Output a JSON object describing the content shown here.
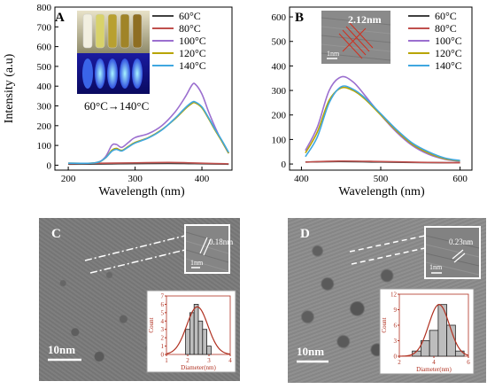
{
  "panels": {
    "A": {
      "letter": "A",
      "ylabel": "Intensity (a.u)",
      "xlabel": "Wavelength (nm)",
      "annotation": "60°C→140°C",
      "xlim": [
        180,
        445
      ],
      "ylim": [
        -25,
        800
      ],
      "xticks": [
        200,
        300,
        400
      ],
      "yticks": [
        0,
        100,
        200,
        300,
        400,
        500,
        600,
        700,
        800
      ]
    },
    "B": {
      "letter": "B",
      "xlabel": "Wavelength (nm)",
      "inset_label": "2.12nm",
      "scale_label": "1nm",
      "xlim": [
        385,
        615
      ],
      "ylim": [
        -25,
        640
      ],
      "xticks": [
        400,
        500,
        600
      ],
      "yticks": [
        0,
        100,
        200,
        300,
        400,
        500,
        600
      ]
    },
    "C": {
      "letter": "C",
      "scale_bar": "10nm",
      "inset_label": "0.18nm",
      "inset_scale": "1nm",
      "hist_xlabel": "Diameter(nm)",
      "hist_ylabel": "Count",
      "hist_xlim": [
        1,
        4
      ],
      "hist_xticks": [
        1,
        2,
        3,
        4
      ],
      "hist_ylim": [
        0,
        7
      ],
      "hist_yticks": [
        0,
        1,
        2,
        3,
        4,
        5,
        6,
        7
      ]
    },
    "D": {
      "letter": "D",
      "scale_bar": "10nm",
      "inset_label": "0.23nm",
      "inset_scale": "1nm",
      "hist_xlabel": "Diameter(nm)",
      "hist_ylabel": "Count",
      "hist_xlim": [
        2,
        6
      ],
      "hist_xticks": [
        2,
        4,
        6
      ],
      "hist_ylim": [
        0,
        12
      ],
      "hist_yticks": [
        0,
        3,
        6,
        9,
        12
      ]
    }
  },
  "chart_data": [
    {
      "type": "line",
      "panel": "A",
      "xlabel": "Wavelength (nm)",
      "ylabel": "Intensity (a.u)",
      "xlim": [
        180,
        445
      ],
      "ylim": [
        -25,
        800
      ],
      "legend_position": "top-right",
      "series": [
        {
          "name": "60°C",
          "color": "#404040",
          "x": [
            200,
            250,
            300,
            350,
            380,
            400,
            440
          ],
          "y": [
            5,
            6,
            8,
            9,
            8,
            7,
            5
          ]
        },
        {
          "name": "80°C",
          "color": "#c0504d",
          "x": [
            200,
            250,
            300,
            350,
            380,
            400,
            440
          ],
          "y": [
            8,
            10,
            12,
            14,
            12,
            10,
            7
          ]
        },
        {
          "name": "100°C",
          "color": "#9b6fcf",
          "x": [
            200,
            240,
            255,
            265,
            272,
            280,
            290,
            300,
            320,
            340,
            360,
            375,
            385,
            390,
            400,
            410,
            420,
            430,
            440
          ],
          "y": [
            10,
            12,
            40,
            100,
            105,
            90,
            115,
            140,
            160,
            200,
            270,
            345,
            405,
            410,
            360,
            270,
            190,
            120,
            60
          ]
        },
        {
          "name": "120°C",
          "color": "#b8a400",
          "x": [
            200,
            240,
            255,
            265,
            272,
            280,
            290,
            300,
            320,
            340,
            360,
            375,
            385,
            390,
            400,
            410,
            420,
            430,
            440
          ],
          "y": [
            10,
            12,
            35,
            75,
            85,
            75,
            95,
            115,
            140,
            180,
            235,
            285,
            312,
            315,
            290,
            235,
            175,
            120,
            60
          ]
        },
        {
          "name": "140°C",
          "color": "#3fa7e0",
          "x": [
            200,
            240,
            255,
            265,
            272,
            280,
            290,
            300,
            320,
            340,
            360,
            375,
            385,
            390,
            400,
            410,
            420,
            430,
            440
          ],
          "y": [
            10,
            12,
            35,
            70,
            80,
            72,
            92,
            112,
            138,
            178,
            238,
            290,
            318,
            320,
            295,
            240,
            180,
            125,
            65
          ]
        }
      ]
    },
    {
      "type": "line",
      "panel": "B",
      "xlabel": "Wavelength (nm)",
      "xlim": [
        385,
        615
      ],
      "ylim": [
        -25,
        640
      ],
      "legend_position": "top-right",
      "series": [
        {
          "name": "60°C",
          "color": "#404040",
          "x": [
            405,
            450,
            500,
            550,
            600
          ],
          "y": [
            8,
            10,
            8,
            6,
            5
          ]
        },
        {
          "name": "80°C",
          "color": "#c0504d",
          "x": [
            405,
            450,
            500,
            550,
            600
          ],
          "y": [
            8,
            12,
            10,
            7,
            5
          ]
        },
        {
          "name": "100°C",
          "color": "#9b6fcf",
          "x": [
            405,
            420,
            435,
            450,
            465,
            480,
            500,
            520,
            540,
            560,
            580,
            600
          ],
          "y": [
            55,
            150,
            300,
            355,
            335,
            280,
            200,
            130,
            75,
            40,
            20,
            10
          ]
        },
        {
          "name": "120°C",
          "color": "#b8a400",
          "x": [
            405,
            420,
            435,
            450,
            465,
            480,
            500,
            520,
            540,
            560,
            580,
            600
          ],
          "y": [
            45,
            130,
            260,
            310,
            300,
            265,
            200,
            135,
            80,
            45,
            22,
            12
          ]
        },
        {
          "name": "140°C",
          "color": "#3fa7e0",
          "x": [
            405,
            420,
            435,
            450,
            465,
            480,
            500,
            520,
            540,
            560,
            580,
            600
          ],
          "y": [
            30,
            110,
            250,
            315,
            305,
            270,
            205,
            140,
            85,
            50,
            25,
            14
          ]
        }
      ]
    },
    {
      "type": "bar",
      "panel": "C",
      "xlabel": "Diameter(nm)",
      "ylabel": "Count",
      "categories": [
        2.0,
        2.2,
        2.4,
        2.6,
        2.8,
        3.0
      ],
      "values": [
        3,
        5,
        6,
        4,
        3,
        1
      ],
      "bin_width": 0.2,
      "fit_curve": {
        "mu": 2.45,
        "sigma": 0.5,
        "amp": 5.7
      }
    },
    {
      "type": "bar",
      "panel": "D",
      "xlabel": "Diameter(nm)",
      "ylabel": "Count",
      "categories": [
        3.0,
        3.5,
        4.0,
        4.5,
        5.0,
        5.5
      ],
      "values": [
        1,
        3,
        5,
        10,
        6,
        1
      ],
      "bin_width": 0.5,
      "fit_curve": {
        "mu": 4.3,
        "sigma": 0.6,
        "amp": 10
      }
    }
  ]
}
